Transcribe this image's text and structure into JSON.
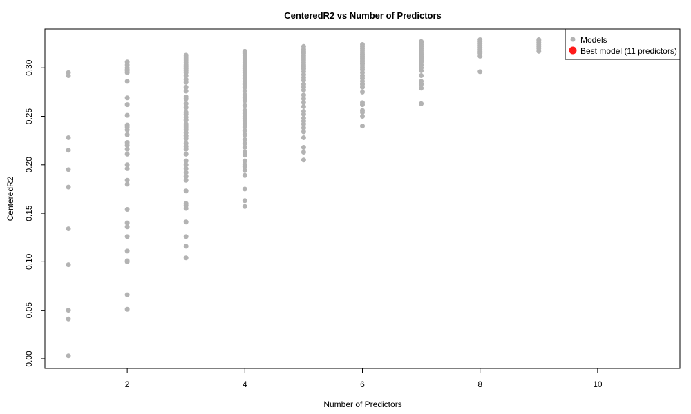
{
  "chart_data": {
    "type": "scatter",
    "title": "CenteredR2 vs Number of Predictors",
    "xlabel": "Number of Predictors",
    "ylabel": "CenteredR2",
    "xlim": [
      0.6,
      11.4
    ],
    "ylim": [
      -0.01,
      0.34
    ],
    "xticks": [
      2,
      4,
      6,
      8,
      10
    ],
    "yticks": [
      0.0,
      0.05,
      0.1,
      0.15,
      0.2,
      0.25,
      0.3
    ],
    "ytick_labels": [
      "0.00",
      "0.05",
      "0.10",
      "0.15",
      "0.20",
      "0.25",
      "0.30"
    ],
    "grid": false,
    "legend": {
      "position": "top-right",
      "entries": [
        "Models",
        "Best model (11 predictors)"
      ]
    },
    "series": [
      {
        "name": "Models",
        "color": "#b3b3b3",
        "points": [
          {
            "x": 1,
            "y": [
              0.003,
              0.041,
              0.05,
              0.097,
              0.134,
              0.177,
              0.195,
              0.215,
              0.228,
              0.292,
              0.295
            ]
          },
          {
            "x": 2,
            "y": [
              0.051,
              0.066,
              0.1,
              0.101,
              0.111,
              0.126,
              0.136,
              0.14,
              0.154,
              0.18,
              0.184,
              0.196,
              0.2,
              0.211,
              0.216,
              0.22,
              0.223,
              0.231,
              0.236,
              0.239,
              0.241,
              0.251,
              0.262,
              0.269,
              0.286,
              0.295,
              0.297,
              0.298,
              0.3,
              0.303,
              0.306
            ]
          },
          {
            "x": 3,
            "y": [
              0.104,
              0.116,
              0.126,
              0.141,
              0.155,
              0.158,
              0.16,
              0.173,
              0.184,
              0.188,
              0.192,
              0.196,
              0.2,
              0.204,
              0.211,
              0.216,
              0.219,
              0.222,
              0.227,
              0.23,
              0.233,
              0.236,
              0.238,
              0.24,
              0.242,
              0.246,
              0.249,
              0.252,
              0.254,
              0.259,
              0.263,
              0.268,
              0.27,
              0.276,
              0.28,
              0.285,
              0.288,
              0.292,
              0.295,
              0.297,
              0.299,
              0.301,
              0.303,
              0.305,
              0.307,
              0.309,
              0.311,
              0.313
            ]
          },
          {
            "x": 4,
            "y": [
              0.157,
              0.163,
              0.175,
              0.189,
              0.194,
              0.198,
              0.2,
              0.204,
              0.21,
              0.213,
              0.218,
              0.222,
              0.226,
              0.231,
              0.235,
              0.239,
              0.242,
              0.245,
              0.248,
              0.25,
              0.253,
              0.256,
              0.261,
              0.266,
              0.269,
              0.272,
              0.276,
              0.28,
              0.283,
              0.286,
              0.289,
              0.292,
              0.295,
              0.297,
              0.299,
              0.301,
              0.303,
              0.305,
              0.307,
              0.309,
              0.311,
              0.313,
              0.315,
              0.317
            ]
          },
          {
            "x": 5,
            "y": [
              0.205,
              0.213,
              0.218,
              0.228,
              0.234,
              0.238,
              0.242,
              0.245,
              0.248,
              0.252,
              0.255,
              0.26,
              0.264,
              0.268,
              0.272,
              0.277,
              0.28,
              0.283,
              0.287,
              0.29,
              0.293,
              0.296,
              0.299,
              0.301,
              0.303,
              0.305,
              0.307,
              0.309,
              0.311,
              0.313,
              0.315,
              0.317,
              0.319,
              0.322
            ]
          },
          {
            "x": 6,
            "y": [
              0.24,
              0.25,
              0.254,
              0.256,
              0.262,
              0.264,
              0.275,
              0.28,
              0.283,
              0.286,
              0.289,
              0.292,
              0.295,
              0.298,
              0.3,
              0.302,
              0.304,
              0.306,
              0.308,
              0.31,
              0.312,
              0.314,
              0.316,
              0.318,
              0.32,
              0.322,
              0.324
            ]
          },
          {
            "x": 7,
            "y": [
              0.263,
              0.279,
              0.283,
              0.286,
              0.292,
              0.297,
              0.3,
              0.303,
              0.306,
              0.308,
              0.31,
              0.312,
              0.314,
              0.316,
              0.318,
              0.32,
              0.322,
              0.324,
              0.326,
              0.327
            ]
          },
          {
            "x": 8,
            "y": [
              0.296,
              0.312,
              0.315,
              0.317,
              0.319,
              0.321,
              0.323,
              0.325,
              0.327,
              0.329
            ]
          },
          {
            "x": 9,
            "y": [
              0.317,
              0.32,
              0.322,
              0.324,
              0.326,
              0.328,
              0.329
            ]
          }
        ]
      },
      {
        "name": "Best model (11 predictors)",
        "color": "#ff0000",
        "points": []
      }
    ]
  }
}
